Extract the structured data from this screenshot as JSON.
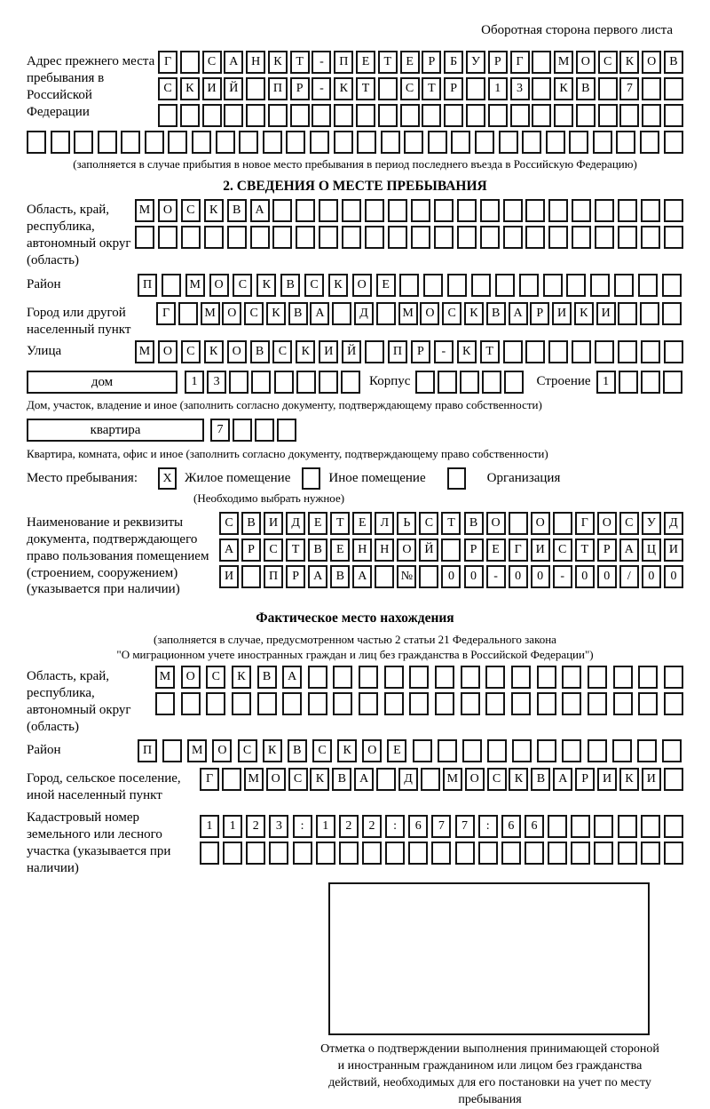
{
  "page": {
    "top_note": "Оборотная сторона первого листа"
  },
  "section_prev": {
    "label": "Адрес прежнего места пребывания в Российской Федерации",
    "caption": "(заполняется в случае прибытия в новое место пребывания в период последнего въезда в Российскую Федерацию)"
  },
  "section2": {
    "heading": "2. СВЕДЕНИЯ О МЕСТЕ ПРЕБЫВАНИЯ",
    "oblast_label": "Область, край, республика, автономный округ (область)",
    "rayon_label": "Район",
    "gorod_label": "Город или другой населенный пункт",
    "ulitsa_label": "Улица",
    "dom_label": "дом",
    "korpus_label": "Корпус",
    "stroenie_label": "Строение",
    "dom_caption": "Дом, участок, владение и иное (заполнить согласно документу, подтверждающему право собственности)",
    "kvartira_label": "квартира",
    "kvartira_caption": "Квартира, комната, офис и иное (заполнить согласно документу, подтверждающему право собственности)",
    "mesto_label": "Место пребывания:",
    "mesto_mark": "X",
    "opt_zhiloe": "Жилое помещение",
    "opt_inoe": "Иное помещение",
    "opt_org": "Организация",
    "mesto_caption": "(Необходимо выбрать нужное)",
    "doc_label": "Наименование и реквизиты документа, подтверждающего право пользования помещением (строением, сооружением) (указывается при наличии)"
  },
  "section3": {
    "heading": "Фактическое место нахождения",
    "caption1": "(заполняется в случае, предусмотренном частью 2 статьи 21 Федерального закона",
    "caption2": "\"О миграционном учете иностранных граждан и лиц без гражданства в Российской Федерации\")",
    "oblast_label": "Область, край, республика, автономный округ (область)",
    "rayon_label": "Район",
    "gorod_label": "Город, сельское поселение, иной населенный пункт",
    "kadastr_label": "Кадастровый номер земельного или лесного участка (указывается при наличии)",
    "stamp_caption": "Отметка о подтверждении выполнения принимающей стороной и иностранным гражданином или лицом без гражданства действий, необходимых для его постановки на учет по месту пребывания"
  },
  "cell_rows": {
    "prev1": {
      "text": "Г САНКТ-ПЕТЕРБУРГ МОСКОВ",
      "count": 24
    },
    "prev2": {
      "text": "СКИЙ ПР-КТ СТР 13 КВ 7",
      "count": 24
    },
    "prev3": {
      "text": "",
      "count": 24
    },
    "prev4": {
      "text": "",
      "count": 28
    },
    "s2_oblast1": {
      "text": "МОСКВА",
      "count": 24
    },
    "s2_oblast2": {
      "text": "",
      "count": 24
    },
    "s2_rayon": {
      "text": "П МОСКВСКОЕ",
      "count": 23
    },
    "s2_gorod": {
      "text": "Г МОСКВА Д МОСКВАРИКИ",
      "count": 24
    },
    "s2_ulitsa": {
      "text": "МОСКОВСКИЙ ПР-КТ",
      "count": 24
    },
    "dom_value": {
      "text": "13",
      "count": 8
    },
    "korpus_value": {
      "text": "",
      "count": 5
    },
    "stroenie_value": {
      "text": "1",
      "count": 4
    },
    "kvartira_value": {
      "text": "7",
      "count": 4
    },
    "doc1": {
      "text": "СВИДЕТЕЛЬСТВО О ГОСУД",
      "count": 21
    },
    "doc2": {
      "text": "АРСТВЕННОЙ РЕГИСТРАЦИ",
      "count": 21
    },
    "doc3": {
      "text": "И ПРАВА № 00-00-00/000",
      "count": 21
    },
    "s3_oblast1": {
      "text": "МОСКВА",
      "count": 21
    },
    "s3_oblast2": {
      "text": "",
      "count": 21
    },
    "s3_rayon": {
      "text": "П МОСКВСКОЕ",
      "count": 22
    },
    "s3_gorod": {
      "text": "Г МОСКВА Д МОСКВАРИКИ",
      "count": 22
    },
    "s3_kadastr1": {
      "text": "1123:122:677:66",
      "count": 21
    },
    "s3_kadastr2": {
      "text": "",
      "count": 21
    }
  }
}
